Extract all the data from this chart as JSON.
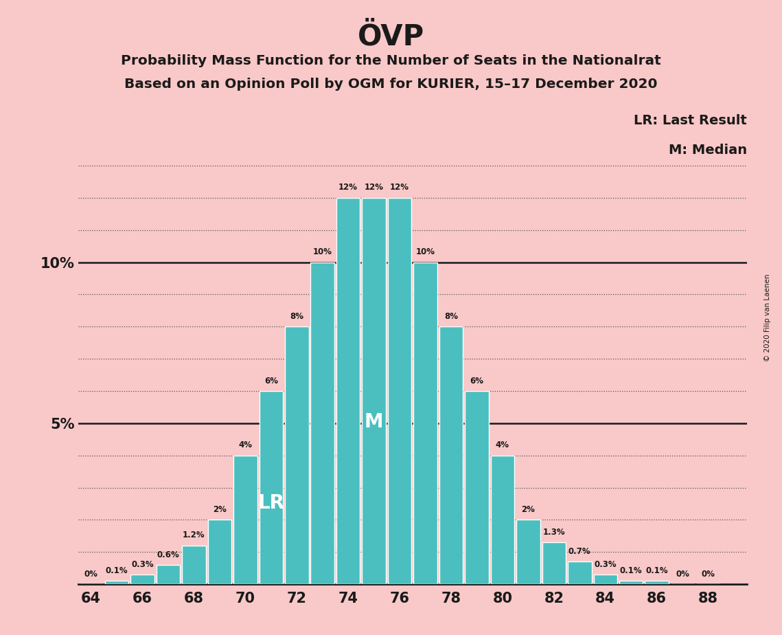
{
  "title": "ÖVP",
  "subtitle1": "Probability Mass Function for the Number of Seats in the Nationalrat",
  "subtitle2": "Based on an Opinion Poll by OGM for KURIER, 15–17 December 2020",
  "copyright": "© 2020 Filip van Laenen",
  "legend1": "LR: Last Result",
  "legend2": "M: Median",
  "seats": [
    64,
    65,
    66,
    67,
    68,
    69,
    70,
    71,
    72,
    73,
    74,
    75,
    76,
    77,
    78,
    79,
    80,
    81,
    82,
    83,
    84,
    85,
    86,
    87,
    88
  ],
  "probabilities": [
    0.0,
    0.1,
    0.3,
    0.6,
    1.2,
    2.0,
    4.0,
    6.0,
    8.0,
    10.0,
    12.0,
    12.0,
    12.0,
    10.0,
    8.0,
    6.0,
    4.0,
    2.0,
    1.3,
    0.7,
    0.3,
    0.1,
    0.1,
    0.0,
    0.0
  ],
  "bar_color": "#4BBFBF",
  "background_color": "#F9C8C8",
  "text_color": "#1a1a1a",
  "bar_edge_color": "#ffffff",
  "label_map": {
    "0.0": "0%",
    "0.1": "0.1%",
    "0.3": "0.3%",
    "0.6": "0.6%",
    "1.2": "1.2%",
    "2.0": "2%",
    "4.0": "4%",
    "6.0": "6%",
    "8.0": "8%",
    "10.0": "10%",
    "12.0": "12%",
    "1.3": "1.3%",
    "0.7": "0.7%"
  },
  "lr_seat": 71,
  "median_seat": 75,
  "xlim_left": 63.5,
  "xlim_right": 89.5,
  "ylim_top": 14.2,
  "yticks": [
    5,
    10
  ],
  "ytick_labels": [
    "5%",
    "10%"
  ],
  "xticks": [
    64,
    66,
    68,
    70,
    72,
    74,
    76,
    78,
    80,
    82,
    84,
    86,
    88
  ],
  "dotted_grid_lines": [
    1,
    2,
    3,
    4,
    6,
    7,
    8,
    9,
    11,
    12,
    13
  ],
  "solid_grid_lines": [
    5,
    10
  ],
  "bar_width": 0.92
}
